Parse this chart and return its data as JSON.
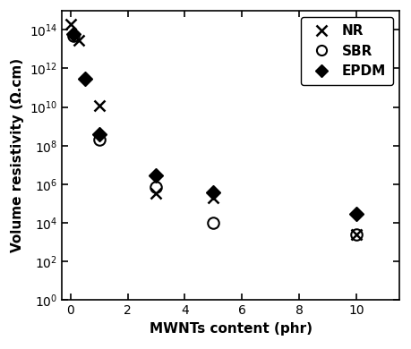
{
  "NR": {
    "x": [
      0.0,
      0.3,
      1,
      3,
      5,
      10
    ],
    "y": [
      200000000000000.0,
      30000000000000.0,
      12000000000.0,
      350000.0,
      200000.0,
      2500.0
    ]
  },
  "SBR": {
    "x": [
      0.1,
      1,
      3,
      5,
      10
    ],
    "y": [
      50000000000000.0,
      200000000.0,
      700000.0,
      10000.0,
      2500.0
    ]
  },
  "EPDM": {
    "x": [
      0.1,
      0.5,
      1,
      3,
      5,
      10
    ],
    "y": [
      60000000000000.0,
      300000000000.0,
      400000000.0,
      3000000.0,
      400000.0,
      30000.0
    ]
  },
  "xlabel": "MWNTs content (phr)",
  "ylabel": "Volume resistivity (Ω.cm)",
  "xlim": [
    -0.3,
    11.5
  ],
  "ylim": [
    1.0,
    1000000000000000.0
  ],
  "legend_labels": [
    "NR",
    "SBR",
    "EPDM"
  ],
  "xticks": [
    0,
    2,
    4,
    6,
    8,
    10
  ],
  "yticks": [
    1.0,
    100.0,
    10000.0,
    1000000.0,
    100000000.0,
    10000000000.0,
    1000000000000.0,
    100000000000000.0
  ],
  "background_color": "#ffffff"
}
